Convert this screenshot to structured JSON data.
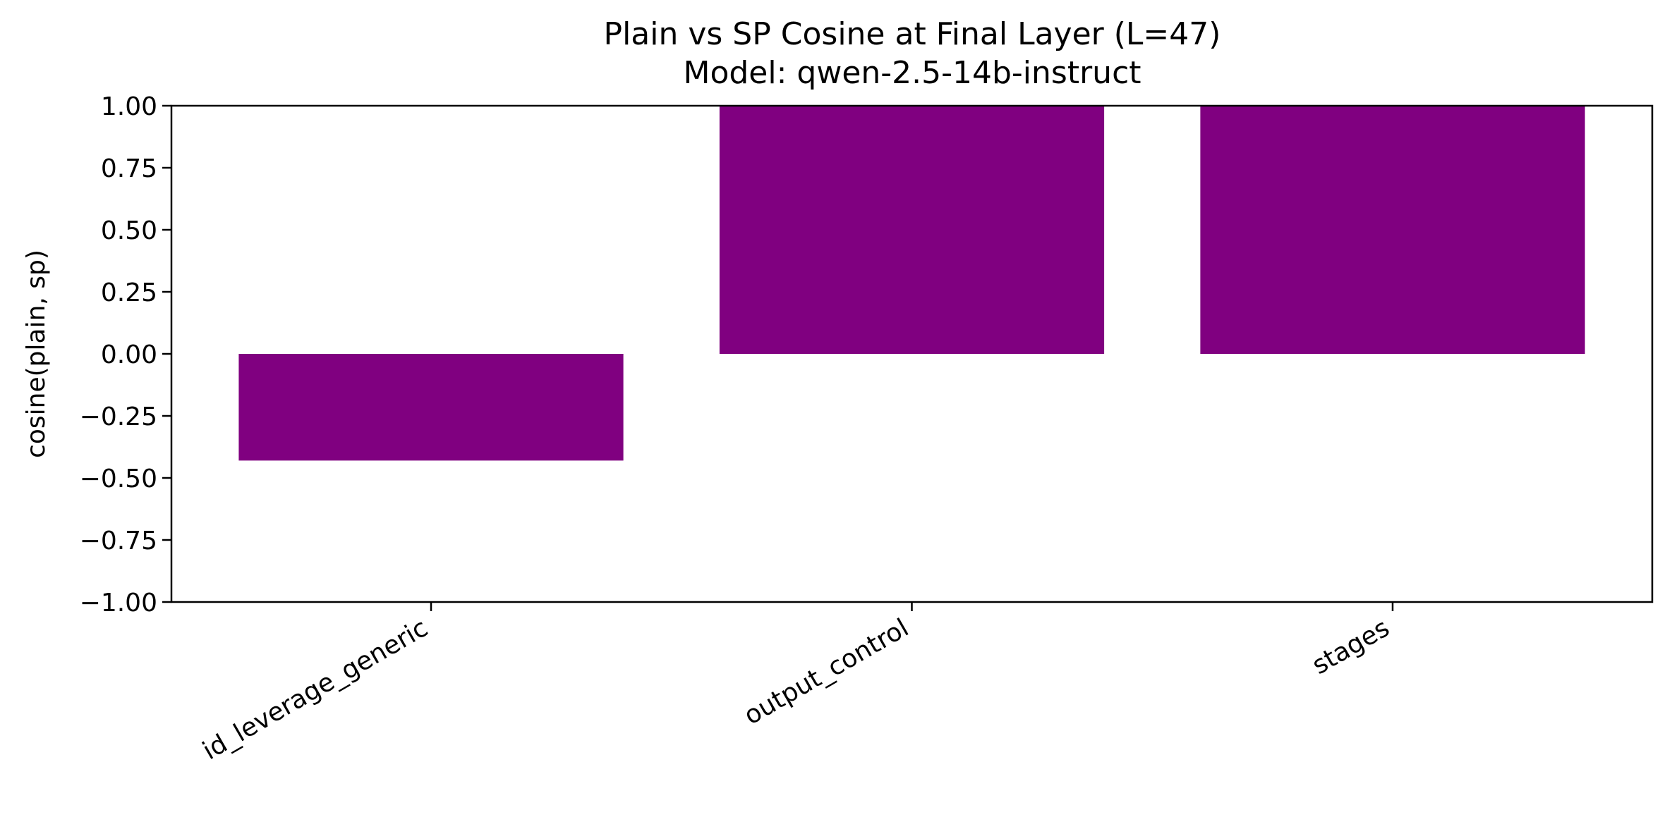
{
  "chart_data": {
    "type": "bar",
    "title": "Plain vs SP Cosine at Final Layer (L=47)",
    "subtitle": "Model: qwen-2.5-14b-instruct",
    "ylabel": "cosine(plain, sp)",
    "xlabel": "",
    "categories": [
      "id_leverage_generic",
      "output_control",
      "stages"
    ],
    "values": [
      -0.43,
      1.0,
      1.0
    ],
    "ylim": [
      -1.0,
      1.0
    ],
    "yticks": [
      "−1.00",
      "−0.75",
      "−0.50",
      "−0.25",
      "0.00",
      "0.25",
      "0.50",
      "0.75",
      "1.00"
    ],
    "ytick_values": [
      -1.0,
      -0.75,
      -0.5,
      -0.25,
      0.0,
      0.25,
      0.5,
      0.75,
      1.0
    ],
    "grid": false,
    "bar_color": "#800080"
  }
}
